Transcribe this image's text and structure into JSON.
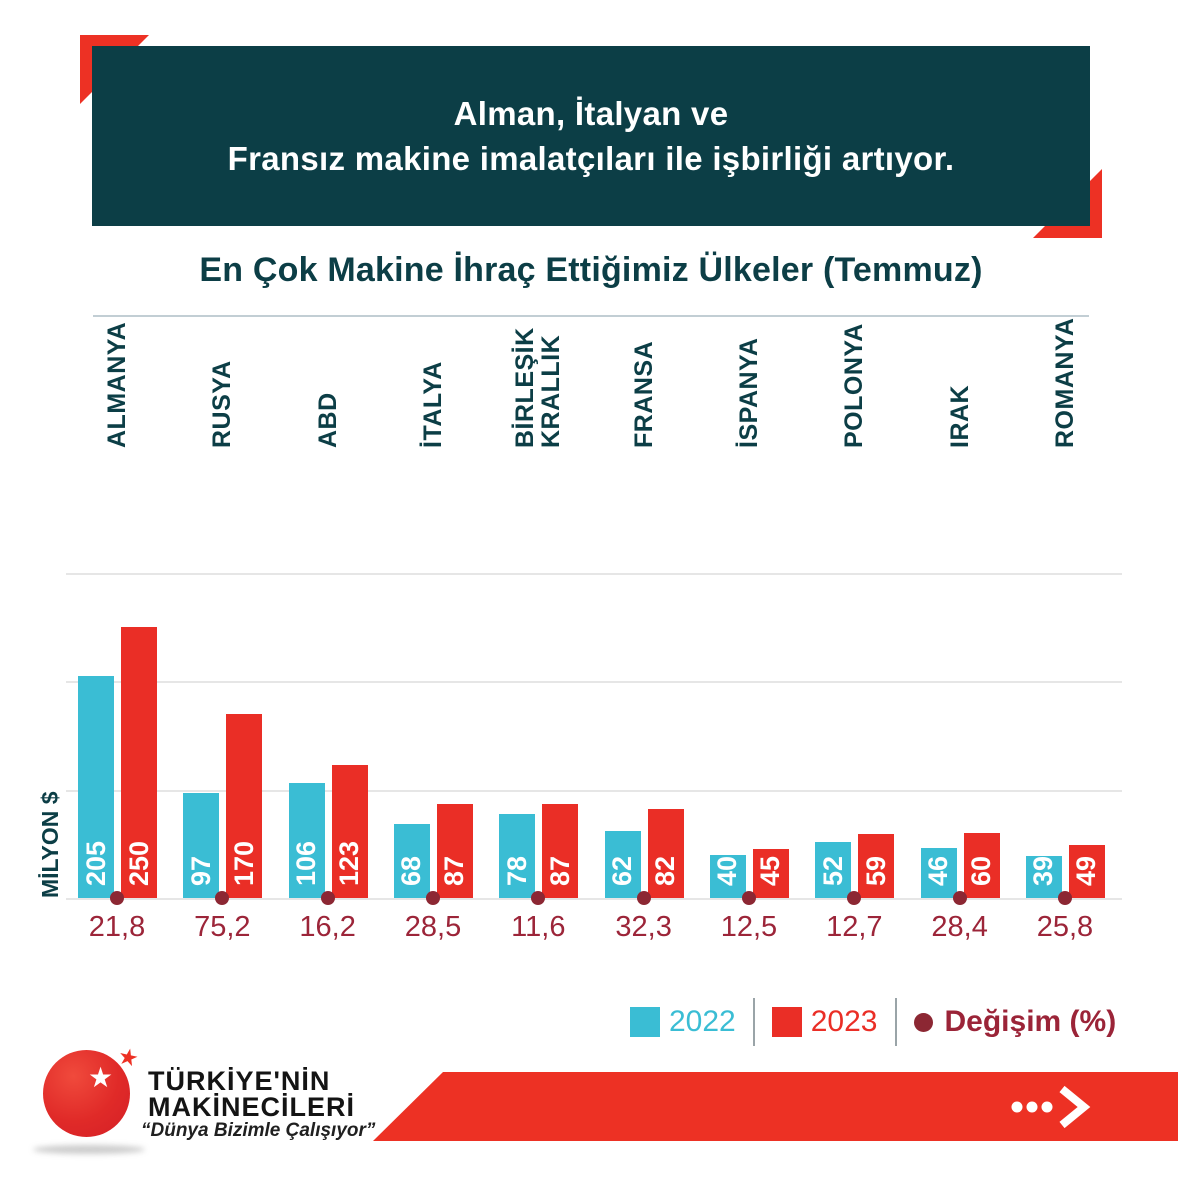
{
  "header": {
    "line1": "Alman, İtalyan ve",
    "line2": "Fransız makine imalatçıları ile işbirliği artıyor."
  },
  "chart_data": {
    "type": "bar",
    "title": "En Çok Makine İhraç Ettiğimiz Ülkeler (Temmuz)",
    "categories": [
      "ALMANYA",
      "RUSYA",
      "ABD",
      "İTALYA",
      "BİRLEŞİK KRALLIK",
      "FRANSA",
      "İSPANYA",
      "POLONYA",
      "IRAK",
      "ROMANYA"
    ],
    "category_lines": [
      [
        "ALMANYA"
      ],
      [
        "RUSYA"
      ],
      [
        "ABD"
      ],
      [
        "İTALYA"
      ],
      [
        "BİRLEŞİK",
        "KRALLIK"
      ],
      [
        "FRANSA"
      ],
      [
        "İSPANYA"
      ],
      [
        "POLONYA"
      ],
      [
        "IRAK"
      ],
      [
        "ROMANYA"
      ]
    ],
    "series": [
      {
        "name": "2022",
        "color": "#3abdd4",
        "values": [
          205,
          97,
          106,
          68,
          78,
          62,
          40,
          52,
          46,
          39
        ]
      },
      {
        "name": "2023",
        "color": "#ea2e26",
        "values": [
          250,
          170,
          123,
          87,
          87,
          82,
          45,
          59,
          60,
          49
        ]
      }
    ],
    "change_pct": [
      "21,8",
      "75,2",
      "16,2",
      "28,5",
      "11,6",
      "32,3",
      "12,5",
      "12,7",
      "28,4",
      "25,8"
    ],
    "xlabel": "",
    "ylabel": "MİLYON $",
    "ylim": [
      0,
      300
    ],
    "gridline_values": [
      0,
      100,
      200,
      300
    ],
    "grid": "horizontal-only, no y tick labels",
    "legend": {
      "position": "bottom-right",
      "items": [
        {
          "label": "2022",
          "color": "#3abdd4",
          "marker": "square"
        },
        {
          "label": "2023",
          "color": "#ea2e26",
          "marker": "square"
        },
        {
          "label": "Değişim (%)",
          "color": "#8c2733",
          "marker": "dot"
        }
      ]
    }
  },
  "footer": {
    "brand_line1": "TÜRKİYE'NİN",
    "brand_line2": "MAKİNECİLERİ",
    "slogan": "“Dünya Bizimle Çalışıyor”",
    "logo_star_white": "★",
    "logo_star_red": "★"
  },
  "colors": {
    "header_background": "#0c3e46",
    "accent_red": "#ed3124",
    "series_2022": "#3abdd4",
    "series_2023": "#ea2e26",
    "change_dot": "#8c2733",
    "change_text": "#9c2539",
    "title_text": "#0c3e46",
    "gridline": "#e6e6e6"
  }
}
